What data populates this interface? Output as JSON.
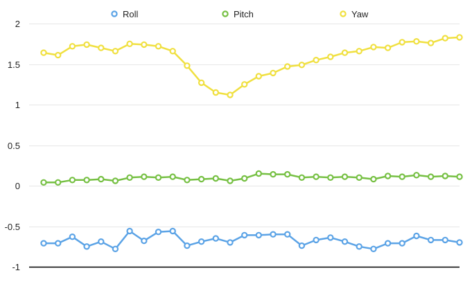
{
  "chart_data": {
    "type": "line",
    "title": "",
    "xlabel": "",
    "ylabel": "",
    "ylim": [
      -1,
      2
    ],
    "yticks": [
      {
        "value": 2,
        "label": "2"
      },
      {
        "value": 1.5,
        "label": "1.5"
      },
      {
        "value": 1,
        "label": "1"
      },
      {
        "value": 0.5,
        "label": "0.5"
      },
      {
        "value": 0,
        "label": "0"
      },
      {
        "value": -0.5,
        "label": "-0.5"
      },
      {
        "value": -1,
        "label": "-1"
      }
    ],
    "grid": true,
    "legend_position": "top",
    "x": [
      1,
      2,
      3,
      4,
      5,
      6,
      7,
      8,
      9,
      10,
      11,
      12,
      13,
      14,
      15,
      16,
      17,
      18,
      19,
      20,
      21,
      22,
      23,
      24,
      25,
      26,
      27,
      28,
      29,
      30
    ],
    "series": [
      {
        "name": "Roll",
        "color": "#5ba3e6",
        "values": [
          -0.71,
          -0.71,
          -0.63,
          -0.75,
          -0.69,
          -0.78,
          -0.56,
          -0.68,
          -0.57,
          -0.56,
          -0.74,
          -0.69,
          -0.65,
          -0.7,
          -0.61,
          -0.61,
          -0.6,
          -0.6,
          -0.74,
          -0.67,
          -0.64,
          -0.69,
          -0.75,
          -0.78,
          -0.71,
          -0.71,
          -0.62,
          -0.67,
          -0.67,
          -0.7
        ]
      },
      {
        "name": "Pitch",
        "color": "#76c043",
        "values": [
          0.04,
          0.04,
          0.07,
          0.07,
          0.08,
          0.06,
          0.1,
          0.11,
          0.1,
          0.11,
          0.07,
          0.08,
          0.09,
          0.06,
          0.09,
          0.15,
          0.14,
          0.14,
          0.1,
          0.11,
          0.1,
          0.11,
          0.1,
          0.08,
          0.12,
          0.11,
          0.13,
          0.11,
          0.12,
          0.11
        ]
      },
      {
        "name": "Yaw",
        "color": "#f0e040",
        "values": [
          1.64,
          1.61,
          1.72,
          1.74,
          1.7,
          1.66,
          1.75,
          1.74,
          1.72,
          1.66,
          1.48,
          1.27,
          1.15,
          1.12,
          1.25,
          1.35,
          1.39,
          1.47,
          1.49,
          1.55,
          1.59,
          1.64,
          1.66,
          1.71,
          1.7,
          1.77,
          1.78,
          1.76,
          1.82,
          1.83
        ]
      }
    ]
  }
}
